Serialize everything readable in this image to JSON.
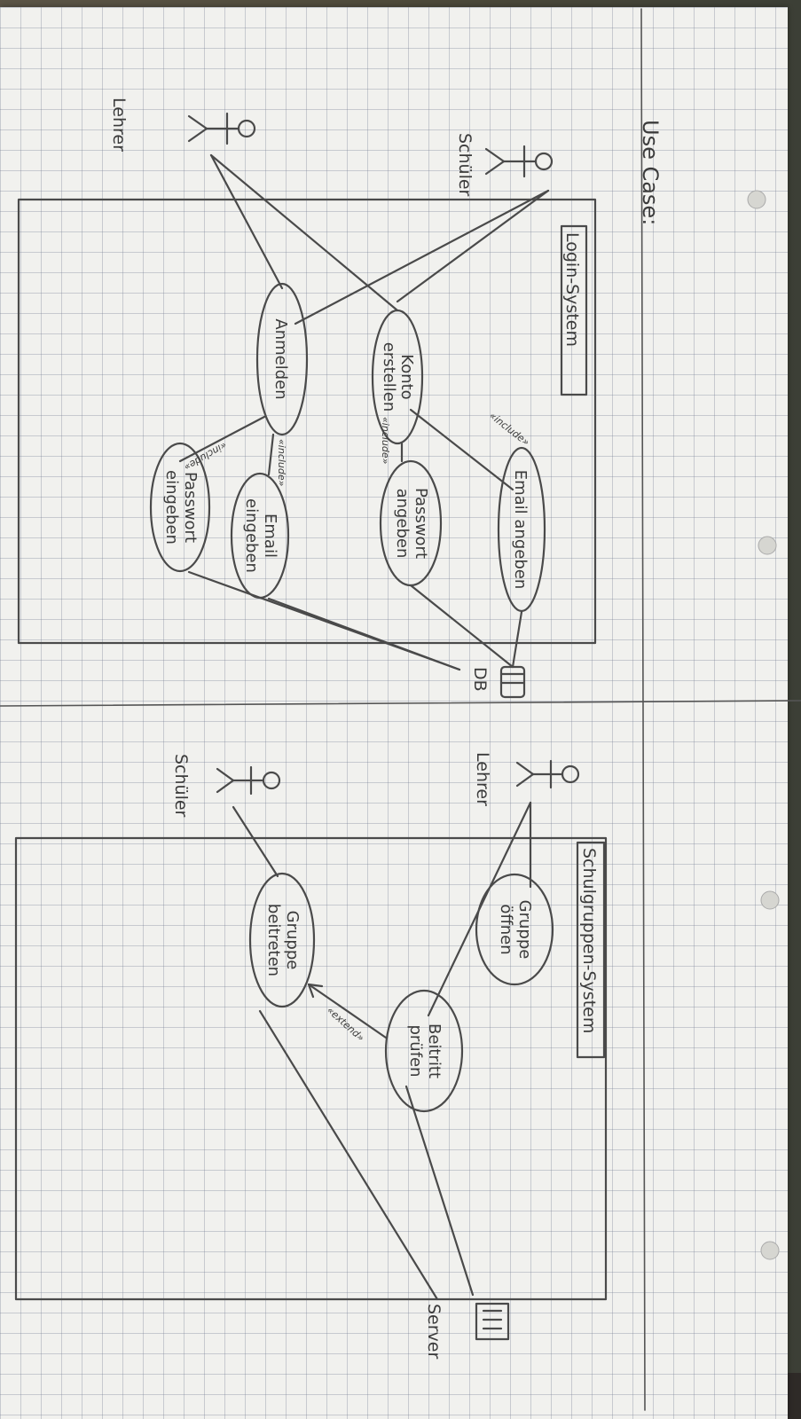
{
  "heading": "Use Case:",
  "systems": [
    {
      "id": "login",
      "title": "Login-System"
    },
    {
      "id": "group",
      "title": "Schulgruppen-System"
    }
  ],
  "actors": [
    {
      "id": "schueler1",
      "label": "Schüler"
    },
    {
      "id": "lehrer1",
      "label": "Lehrer"
    },
    {
      "id": "lehrer2",
      "label": "Lehrer"
    },
    {
      "id": "schueler2",
      "label": "Schüler"
    },
    {
      "id": "db",
      "label": "DB"
    },
    {
      "id": "server",
      "label": "Server"
    }
  ],
  "use_cases": [
    {
      "id": "konto",
      "lines": [
        "Konto",
        "erstellen"
      ]
    },
    {
      "id": "anmelden",
      "lines": [
        "Anmelden"
      ]
    },
    {
      "id": "email1",
      "lines": [
        "Email angeben"
      ]
    },
    {
      "id": "passwort1",
      "lines": [
        "Passwort",
        "angeben"
      ]
    },
    {
      "id": "email2",
      "lines": [
        "Email",
        "eingeben"
      ]
    },
    {
      "id": "passwort2",
      "lines": [
        "Passwort",
        "eingeben"
      ]
    },
    {
      "id": "gruppe_oeffnen",
      "lines": [
        "Gruppe",
        "öffnen"
      ]
    },
    {
      "id": "beitritt",
      "lines": [
        "Beitritt",
        "prüfen"
      ]
    },
    {
      "id": "gruppe_beitreten",
      "lines": [
        "Gruppe",
        "beitreten"
      ]
    }
  ],
  "relations": [
    {
      "id": "inc1",
      "label": "«include»"
    },
    {
      "id": "inc2",
      "label": "«include»"
    },
    {
      "id": "inc3",
      "label": "«include»"
    },
    {
      "id": "inc4",
      "label": "«include»"
    },
    {
      "id": "ext1",
      "label": "«extend»"
    }
  ]
}
